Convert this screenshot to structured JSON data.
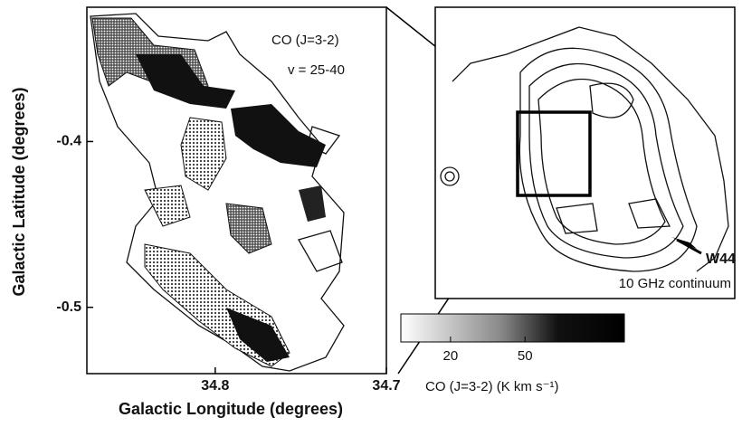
{
  "chart_data": {
    "type": "contour",
    "xlabel": "Galactic Longitude (degrees)",
    "ylabel": "Galactic Latitude (degrees)",
    "xlim": [
      34.875,
      34.7
    ],
    "xticks": [
      34.8,
      34.7
    ],
    "ylim": [
      -0.54,
      -0.319
    ],
    "yticks": [
      -0.4,
      -0.5
    ],
    "annotations": [
      "CO (J=3-2)",
      "v = 25-40"
    ],
    "colorbar": {
      "label": "CO (J=3-2) (K km s⁻¹)",
      "lim": [
        0,
        90
      ],
      "ticks": [
        20,
        50
      ]
    },
    "inset": {
      "label": "W44",
      "caption": "10 GHz continuum"
    }
  }
}
